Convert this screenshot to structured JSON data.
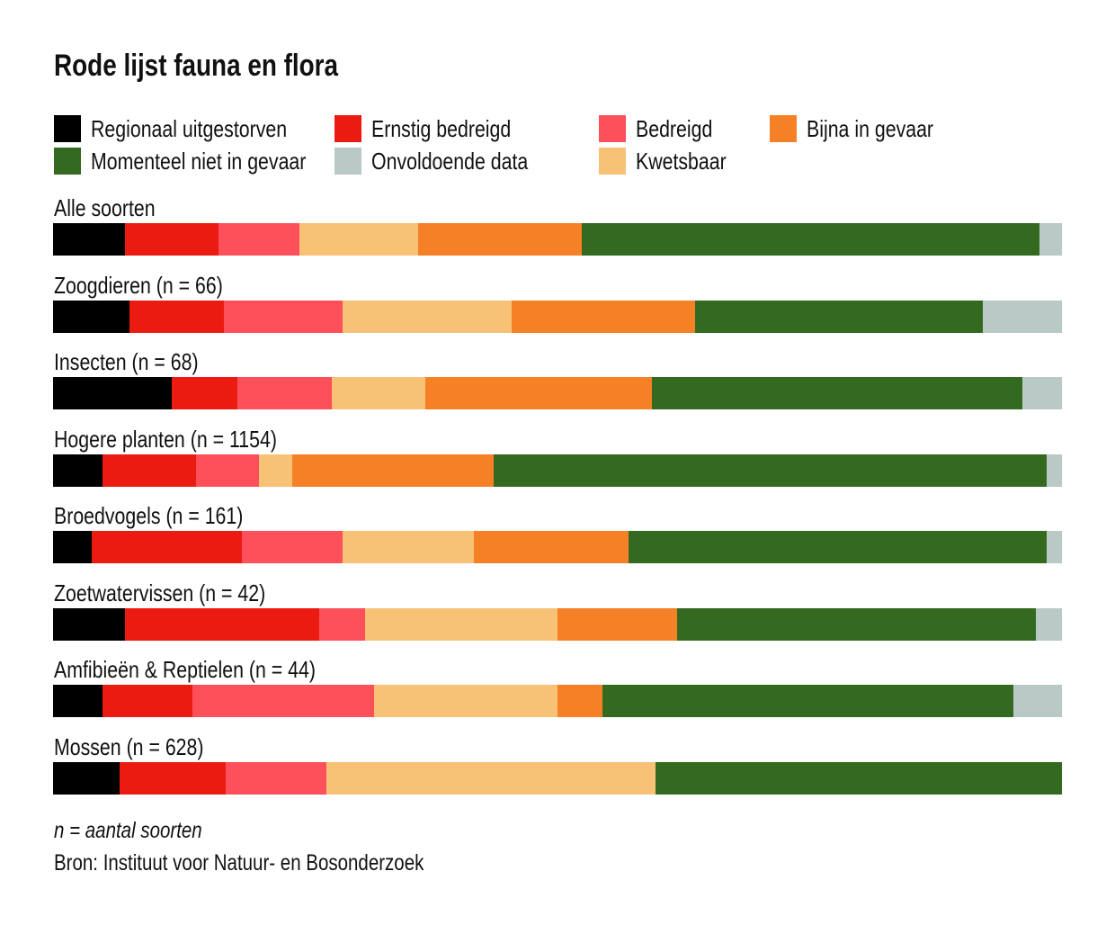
{
  "chart_data": {
    "type": "bar",
    "orientation": "horizontal",
    "stacked": true,
    "title": "Rode lijst fauna en flora",
    "categories": [
      "Alle soorten",
      "Zoogdieren (n = 66)",
      "Insecten (n = 68)",
      "Hogere planten (n = 1154)",
      "Broedvogels (n = 161)",
      "Zoetwatervissen (n = 42)",
      "Amfibieën & Reptielen (n = 44)",
      "Mossen (n = 628)"
    ],
    "series": [
      {
        "name": "Regionaal uitgestorven",
        "color": "#000000",
        "values": [
          7.1,
          7.6,
          11.8,
          4.9,
          3.8,
          7.1,
          4.9,
          6.6
        ]
      },
      {
        "name": "Ernstig bedreigd",
        "color": "#ec1b12",
        "values": [
          9.3,
          9.3,
          6.5,
          9.3,
          14.9,
          19.3,
          8.9,
          10.5
        ]
      },
      {
        "name": "Bedreigd",
        "color": "#fd505b",
        "values": [
          8.0,
          11.8,
          9.3,
          6.2,
          10.0,
          4.5,
          18.0,
          10.0
        ]
      },
      {
        "name": "Kwetsbaar",
        "color": "#f7c275",
        "values": [
          11.8,
          16.8,
          9.3,
          3.3,
          13.0,
          19.1,
          18.2,
          32.6
        ]
      },
      {
        "name": "Bijna in gevaar",
        "color": "#f58025",
        "values": [
          16.2,
          18.1,
          22.5,
          20.0,
          15.3,
          11.9,
          4.5,
          0
        ]
      },
      {
        "name": "Momenteel niet in gevaar",
        "color": "#336a20",
        "values": [
          45.4,
          28.6,
          36.7,
          54.8,
          41.5,
          35.5,
          40.7,
          40.3
        ]
      },
      {
        "name": "Onvoldoende data",
        "color": "#b9c9c6",
        "values": [
          2.2,
          7.8,
          3.9,
          1.5,
          1.5,
          2.6,
          4.8,
          0
        ]
      }
    ],
    "xlim": [
      0,
      100
    ],
    "legend": "top",
    "grid": false
  },
  "footnote": "n = aantal soorten",
  "source": "Bron: Instituut voor Natuur- en Bosonderzoek"
}
